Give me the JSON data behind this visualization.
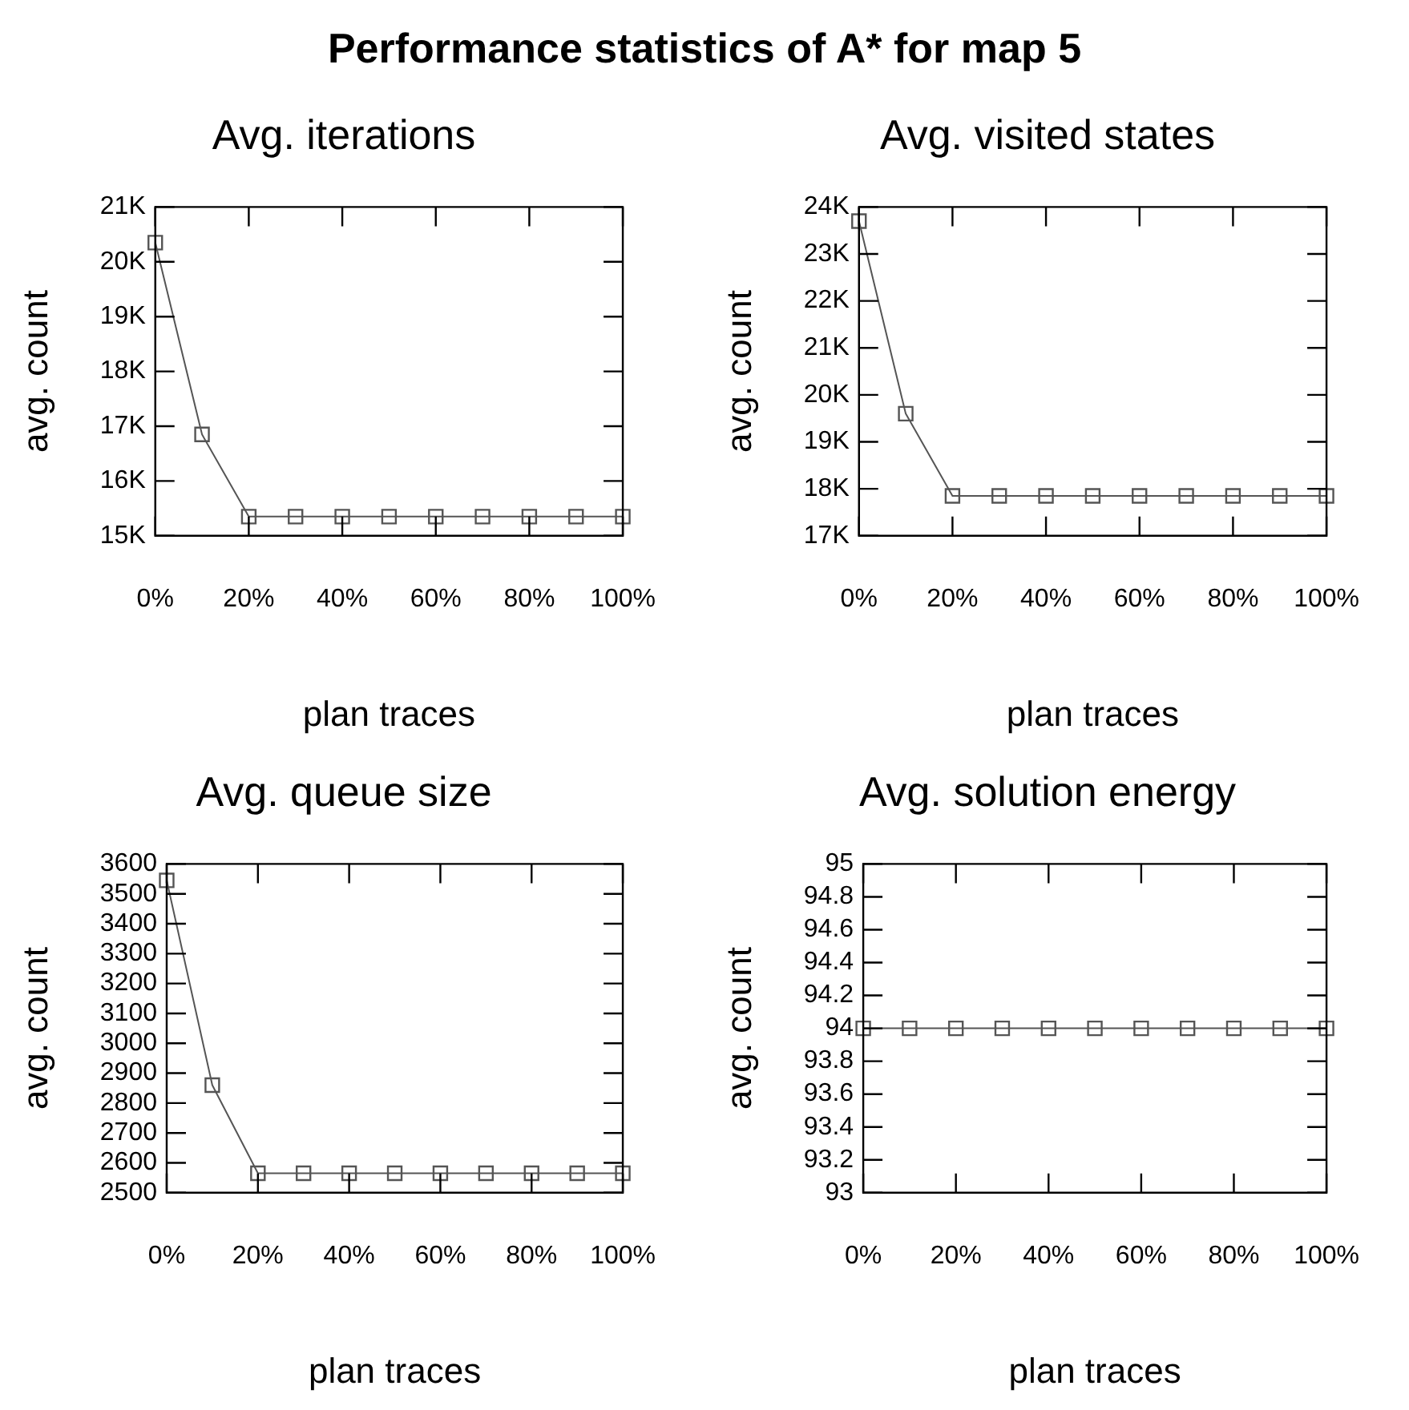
{
  "chart_data": [
    {
      "type": "line",
      "title": "Avg. iterations",
      "xlabel": "plan traces",
      "ylabel": "avg. count",
      "annotations": [
        "Performance statistics of A* for map 5"
      ],
      "marker": "square",
      "line_style": "solid",
      "grid": false,
      "legend": false,
      "x": [
        0,
        10,
        20,
        30,
        40,
        50,
        60,
        70,
        80,
        90,
        100
      ],
      "series": [
        {
          "color": "#555555",
          "values": [
            20350,
            16850,
            15350,
            15350,
            15350,
            15350,
            15350,
            15350,
            15350,
            15350,
            15350
          ]
        }
      ],
      "xlim": [
        0,
        100
      ],
      "xticks": [
        {
          "value": 0,
          "label": "0%"
        },
        {
          "value": 20,
          "label": "20%"
        },
        {
          "value": 40,
          "label": "40%"
        },
        {
          "value": 60,
          "label": "60%"
        },
        {
          "value": 80,
          "label": "80%"
        },
        {
          "value": 100,
          "label": "100%"
        }
      ],
      "ylim": [
        15000,
        21000
      ],
      "yticks": [
        {
          "value": 15000,
          "label": "15K"
        },
        {
          "value": 16000,
          "label": "16K"
        },
        {
          "value": 17000,
          "label": "17K"
        },
        {
          "value": 18000,
          "label": "18K"
        },
        {
          "value": 19000,
          "label": "19K"
        },
        {
          "value": 20000,
          "label": "20K"
        },
        {
          "value": 21000,
          "label": "21K"
        }
      ]
    },
    {
      "type": "line",
      "title": "Avg. visited states",
      "xlabel": "plan traces",
      "ylabel": "avg. count",
      "marker": "square",
      "line_style": "solid",
      "grid": false,
      "legend": false,
      "x": [
        0,
        10,
        20,
        30,
        40,
        50,
        60,
        70,
        80,
        90,
        100
      ],
      "series": [
        {
          "color": "#555555",
          "values": [
            23700,
            19600,
            17850,
            17850,
            17850,
            17850,
            17850,
            17850,
            17850,
            17850,
            17850
          ]
        }
      ],
      "xlim": [
        0,
        100
      ],
      "xticks": [
        {
          "value": 0,
          "label": "0%"
        },
        {
          "value": 20,
          "label": "20%"
        },
        {
          "value": 40,
          "label": "40%"
        },
        {
          "value": 60,
          "label": "60%"
        },
        {
          "value": 80,
          "label": "80%"
        },
        {
          "value": 100,
          "label": "100%"
        }
      ],
      "ylim": [
        17000,
        24000
      ],
      "yticks": [
        {
          "value": 17000,
          "label": "17K"
        },
        {
          "value": 18000,
          "label": "18K"
        },
        {
          "value": 19000,
          "label": "19K"
        },
        {
          "value": 20000,
          "label": "20K"
        },
        {
          "value": 21000,
          "label": "21K"
        },
        {
          "value": 22000,
          "label": "22K"
        },
        {
          "value": 23000,
          "label": "23K"
        },
        {
          "value": 24000,
          "label": "24K"
        }
      ]
    },
    {
      "type": "line",
      "title": "Avg. queue size",
      "xlabel": "plan traces",
      "ylabel": "avg. count",
      "marker": "square",
      "line_style": "solid",
      "grid": false,
      "legend": false,
      "x": [
        0,
        10,
        20,
        30,
        40,
        50,
        60,
        70,
        80,
        90,
        100
      ],
      "series": [
        {
          "color": "#555555",
          "values": [
            3545,
            2860,
            2565,
            2565,
            2565,
            2565,
            2565,
            2565,
            2565,
            2565,
            2565
          ]
        }
      ],
      "xlim": [
        0,
        100
      ],
      "xticks": [
        {
          "value": 0,
          "label": "0%"
        },
        {
          "value": 20,
          "label": "20%"
        },
        {
          "value": 40,
          "label": "40%"
        },
        {
          "value": 60,
          "label": "60%"
        },
        {
          "value": 80,
          "label": "80%"
        },
        {
          "value": 100,
          "label": "100%"
        }
      ],
      "ylim": [
        2500,
        3600
      ],
      "yticks": [
        2500,
        2600,
        2700,
        2800,
        2900,
        3000,
        3100,
        3200,
        3300,
        3400,
        3500,
        3600
      ]
    },
    {
      "type": "line",
      "title": "Avg. solution energy",
      "xlabel": "plan traces",
      "ylabel": "avg. count",
      "marker": "square",
      "line_style": "solid",
      "grid": false,
      "legend": false,
      "x": [
        0,
        10,
        20,
        30,
        40,
        50,
        60,
        70,
        80,
        90,
        100
      ],
      "series": [
        {
          "color": "#555555",
          "values": [
            94,
            94,
            94,
            94,
            94,
            94,
            94,
            94,
            94,
            94,
            94
          ]
        }
      ],
      "xlim": [
        0,
        100
      ],
      "xticks": [
        {
          "value": 0,
          "label": "0%"
        },
        {
          "value": 20,
          "label": "20%"
        },
        {
          "value": 40,
          "label": "40%"
        },
        {
          "value": 60,
          "label": "60%"
        },
        {
          "value": 80,
          "label": "80%"
        },
        {
          "value": 100,
          "label": "100%"
        }
      ],
      "ylim": [
        93,
        95
      ],
      "yticks": [
        93,
        93.2,
        93.4,
        93.6,
        93.8,
        94,
        94.2,
        94.4,
        94.6,
        94.8,
        95
      ]
    }
  ]
}
